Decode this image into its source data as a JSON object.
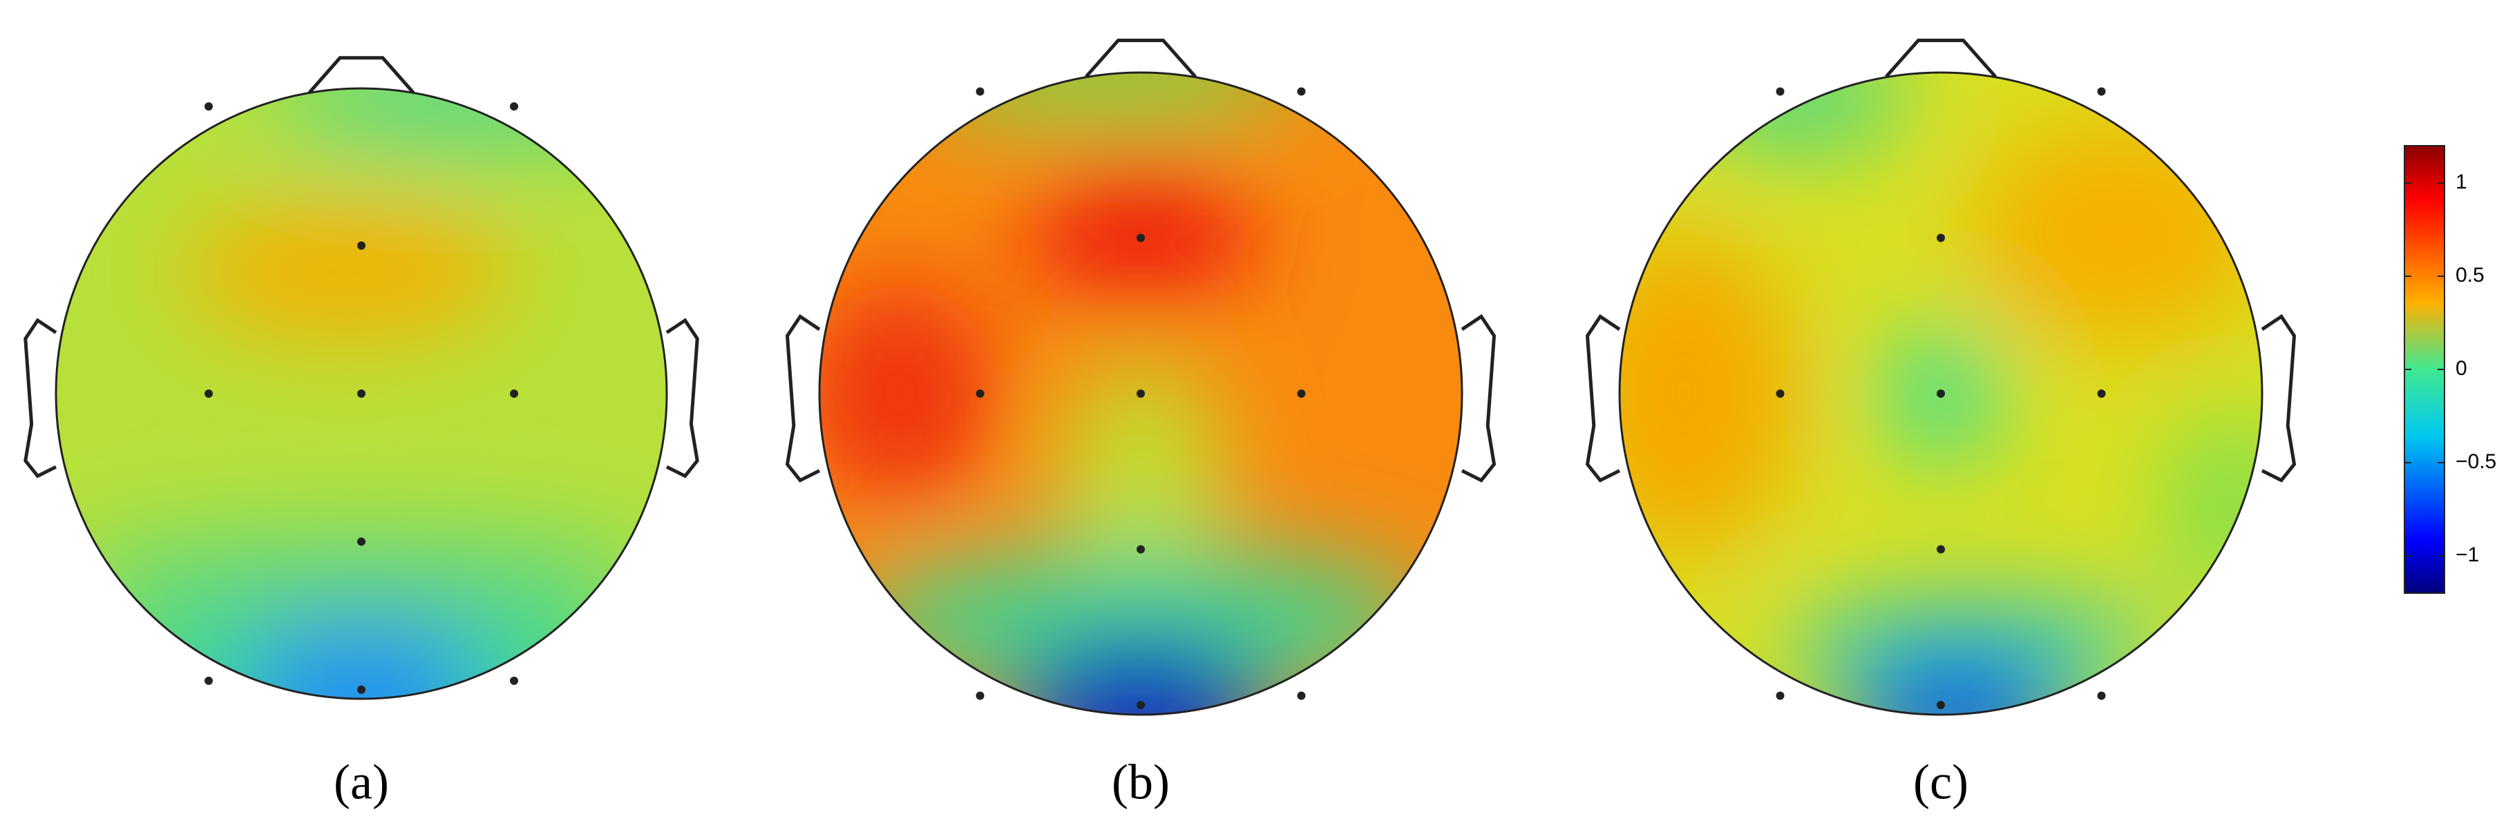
{
  "panels": [
    {
      "label": "(a)"
    },
    {
      "label": "(b)"
    },
    {
      "label": "(c)"
    }
  ],
  "colorbar": {
    "ylim": [
      -1.2,
      1.2
    ],
    "yticks": [
      1,
      0.5,
      0,
      {
        "value": -0.5,
        "label": "−0.5"
      },
      {
        "value": -1,
        "label": "−1"
      }
    ]
  }
}
